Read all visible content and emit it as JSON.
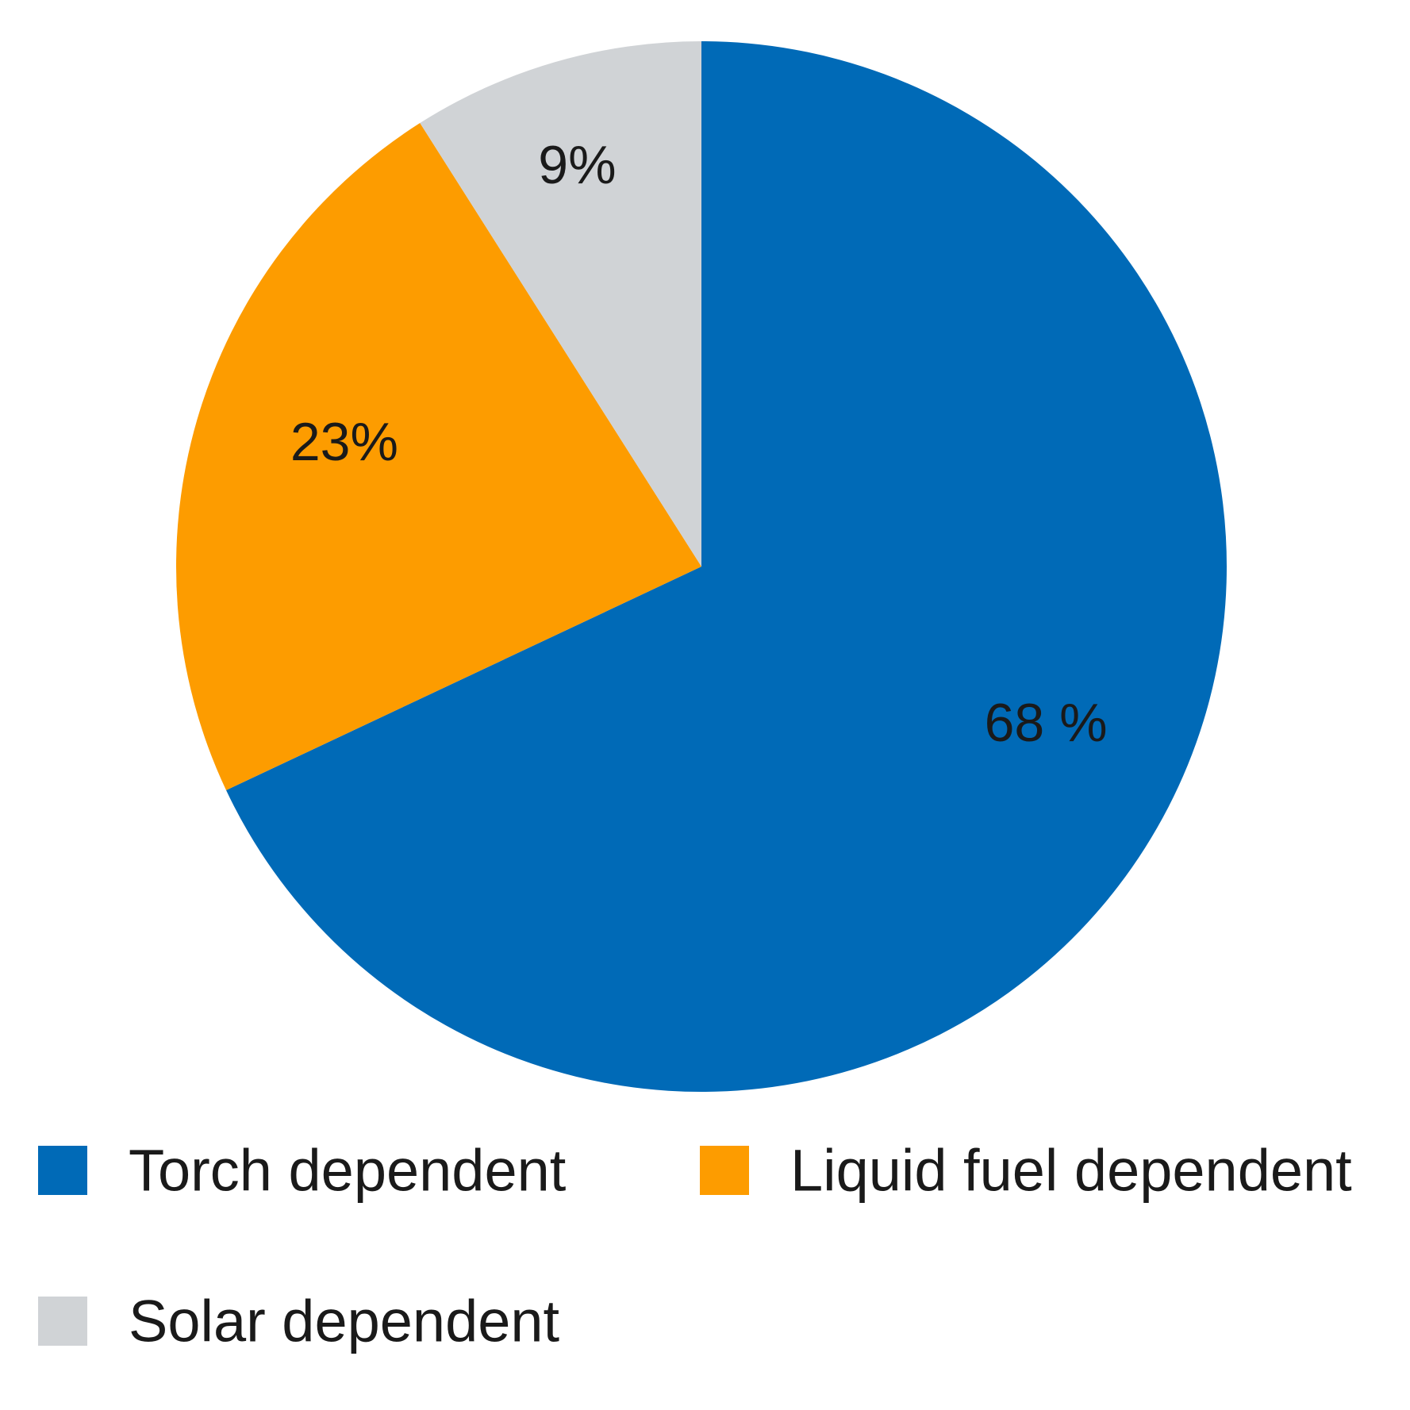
{
  "chart_data": {
    "type": "pie",
    "slices": [
      {
        "name": "Torch dependent",
        "value": 68,
        "label": "68 %",
        "color": "#006ab7"
      },
      {
        "name": "Liquid fuel dependent",
        "value": 23,
        "label": "23%",
        "color": "#fd9c00"
      },
      {
        "name": "Solar dependent",
        "value": 9,
        "label": "9%",
        "color": "#d0d3d6"
      }
    ],
    "legend": {
      "placement": "bottom",
      "entries": [
        "Torch dependent",
        "Liquid fuel dependent",
        "Solar dependent"
      ]
    },
    "title": "",
    "start_angle": "12 o'clock",
    "direction": "clockwise"
  }
}
